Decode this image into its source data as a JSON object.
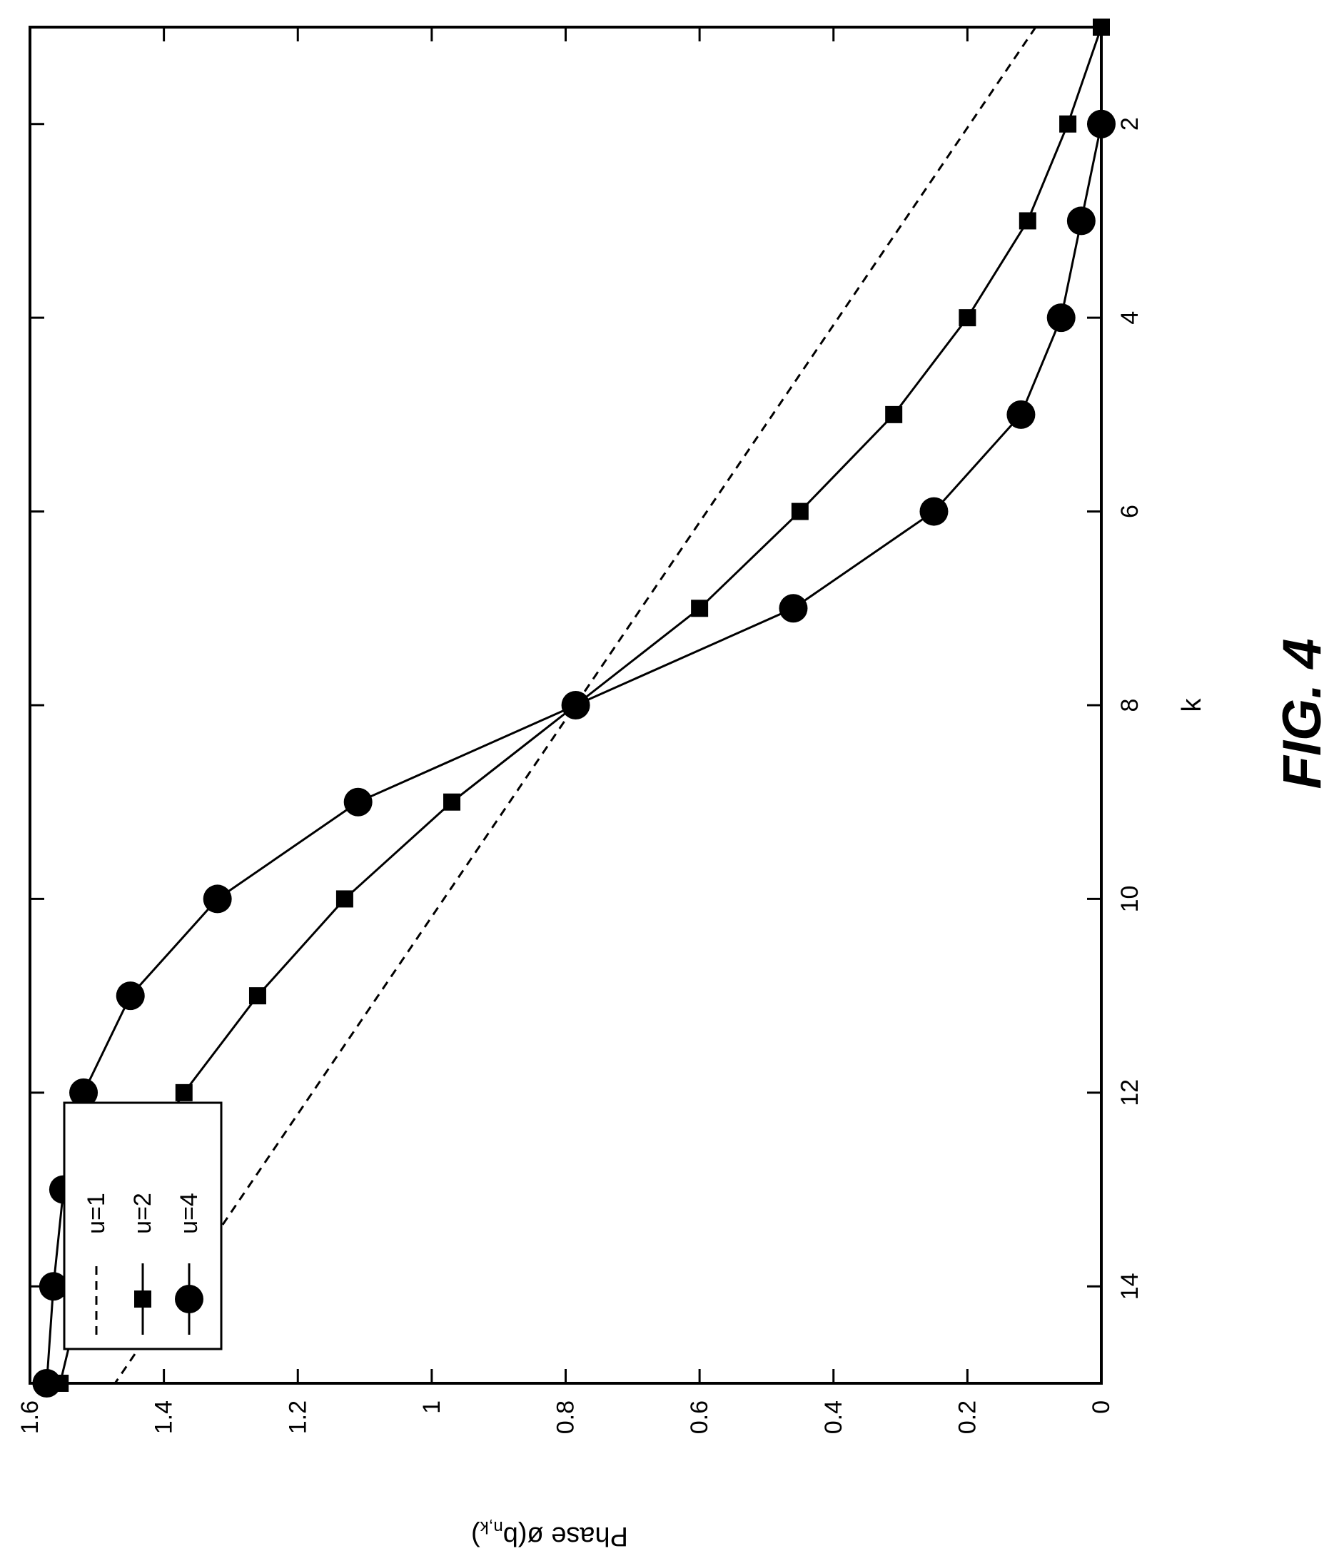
{
  "figure_label": "FIG. 4",
  "chart_data": {
    "type": "line",
    "orientation": "rotated 90 degrees clockwise",
    "xlabel": "k",
    "ylabel_main": "Phase ø(b",
    "ylabel_sub": "n,k",
    "ylabel_close": ")",
    "xlim": [
      1,
      15
    ],
    "ylim": [
      0,
      1.6
    ],
    "x_ticks": [
      2,
      4,
      6,
      8,
      10,
      12,
      14
    ],
    "y_ticks": [
      0,
      0.2,
      0.4,
      0.6,
      0.8,
      1,
      1.2,
      1.4,
      1.6
    ],
    "y_tick_labels": [
      "0",
      "0.2",
      "0.4",
      "0.6",
      "0.8",
      "1",
      "1.2",
      "1.4",
      "1.6"
    ],
    "legend_placement": "top-left",
    "series": [
      {
        "name": "u=1",
        "style": "dashed",
        "marker": "none",
        "x": [
          1,
          15
        ],
        "y": [
          0.098,
          1.473
        ]
      },
      {
        "name": "u=2",
        "style": "solid",
        "marker": "square",
        "x": [
          1,
          2,
          3,
          4,
          5,
          6,
          7,
          8,
          9,
          10,
          11,
          12,
          13,
          14,
          15
        ],
        "y": [
          0.0,
          0.05,
          0.11,
          0.2,
          0.31,
          0.45,
          0.6,
          0.785,
          0.97,
          1.13,
          1.26,
          1.37,
          1.46,
          1.52,
          1.555
        ]
      },
      {
        "name": "u=4",
        "style": "solid",
        "marker": "circle",
        "x": [
          2,
          3,
          4,
          5,
          6,
          7,
          8,
          9,
          10,
          11,
          12,
          13,
          14,
          15
        ],
        "y": [
          0.0,
          0.03,
          0.06,
          0.12,
          0.25,
          0.46,
          0.785,
          1.11,
          1.32,
          1.45,
          1.52,
          1.55,
          1.565,
          1.575
        ]
      }
    ]
  }
}
